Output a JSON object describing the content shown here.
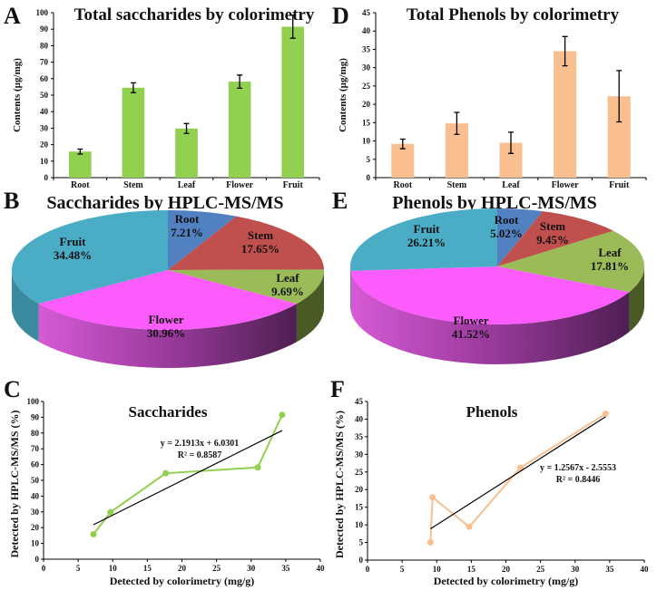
{
  "chart_data": [
    {
      "panel": "A",
      "type": "bar",
      "title": "Total saccharides by colorimetry",
      "xlabel": "",
      "ylabel": "Contents (µg/mg)",
      "categories": [
        "Root",
        "Stem",
        "Leaf",
        "Flower",
        "Fruit"
      ],
      "values": [
        15.8,
        54.5,
        29.8,
        58.2,
        91.5
      ],
      "errors": [
        1.5,
        3.0,
        3.0,
        4.0,
        7.0
      ],
      "ylim": [
        0,
        100
      ],
      "yticks": [
        0,
        10,
        20,
        30,
        40,
        50,
        60,
        70,
        80,
        90,
        100
      ],
      "color": "#92D050",
      "grid": false
    },
    {
      "panel": "D",
      "type": "bar",
      "title": "Total Phenols by colorimetry",
      "xlabel": "",
      "ylabel": "Contents (µg/mg)",
      "categories": [
        "Root",
        "Stem",
        "Leaf",
        "Flower",
        "Fruit"
      ],
      "values": [
        9.2,
        14.8,
        9.5,
        34.5,
        22.2
      ],
      "errors": [
        1.3,
        3.0,
        2.9,
        4.0,
        7.0
      ],
      "ylim": [
        0,
        45
      ],
      "yticks": [
        0,
        5,
        10,
        15,
        20,
        25,
        30,
        35,
        40,
        45
      ],
      "color": "#F9BF8F",
      "grid": false
    },
    {
      "panel": "B",
      "type": "pie",
      "title": "Saccharides by HPLC-MS/MS",
      "slices": [
        {
          "label": "Root",
          "value": 7.21,
          "text": "7.21%",
          "color": "#5181C0",
          "side": "#3a5f8f"
        },
        {
          "label": "Stem",
          "value": 17.65,
          "text": "17.65%",
          "color": "#C0504D",
          "side": "#8a3634"
        },
        {
          "label": "Leaf",
          "value": 9.69,
          "text": "9.69%",
          "color": "#9BBB59",
          "side": "#4a5a24"
        },
        {
          "label": "Flower",
          "value": 30.96,
          "text": "30.96%",
          "color": "#FB5CFB",
          "side": "#8e3590"
        },
        {
          "label": "Fruit",
          "value": 34.48,
          "text": "34.48%",
          "color": "#4BACC6",
          "side": "#3a8aa0"
        }
      ]
    },
    {
      "panel": "E",
      "type": "pie",
      "title": "Phenols by HPLC-MS/MS",
      "slices": [
        {
          "label": "Root",
          "value": 5.02,
          "text": "5.02%",
          "color": "#5181C0",
          "side": "#3a5f8f"
        },
        {
          "label": "Stem",
          "value": 9.45,
          "text": "9.45%",
          "color": "#C0504D",
          "side": "#8a3634"
        },
        {
          "label": "Leaf",
          "value": 17.81,
          "text": "17.81%",
          "color": "#9BBB59",
          "side": "#4a5a24"
        },
        {
          "label": "Flower",
          "value": 41.52,
          "text": "41.52%",
          "color": "#FB5CFB",
          "side": "#8e3590"
        },
        {
          "label": "Fruit",
          "value": 26.21,
          "text": "26.21%",
          "color": "#4BACC6",
          "side": "#3a8aa0"
        }
      ]
    },
    {
      "panel": "C",
      "type": "line",
      "title": "Saccharides",
      "xlabel": "Detected by colorimetry (mg/g)",
      "ylabel": "Detected by HPLC-MS/MS (%)",
      "x": [
        7.21,
        9.69,
        17.65,
        30.96,
        34.48
      ],
      "y": [
        15.8,
        29.8,
        54.5,
        58.2,
        91.5
      ],
      "xlim": [
        0,
        40
      ],
      "ylim": [
        0,
        100
      ],
      "xticks": [
        0,
        5,
        10,
        15,
        20,
        25,
        30,
        35,
        40
      ],
      "yticks": [
        0,
        10,
        20,
        30,
        40,
        50,
        60,
        70,
        80,
        90,
        100
      ],
      "trend": {
        "slope": 2.1913,
        "intercept": 6.0301,
        "x_range": [
          7.21,
          34.48
        ],
        "equation": "y = 2.1913x + 6.0301",
        "r2": "R² = 0.8587"
      },
      "color": "#92D050"
    },
    {
      "panel": "F",
      "type": "line",
      "title": "Phenols",
      "xlabel": "Detected by colorimetry (mg/g)",
      "ylabel": "Detected by HPLC-MS/MS (%)",
      "x": [
        9.1,
        9.4,
        14.7,
        22.1,
        34.4
      ],
      "y": [
        5.02,
        17.81,
        9.45,
        26.21,
        41.52
      ],
      "xlim": [
        0,
        40
      ],
      "ylim": [
        0,
        45
      ],
      "xticks": [
        0,
        5,
        10,
        15,
        20,
        25,
        30,
        35,
        40
      ],
      "yticks": [
        0,
        5,
        10,
        15,
        20,
        25,
        30,
        35,
        40,
        45
      ],
      "trend": {
        "slope": 1.2567,
        "intercept": -2.5553,
        "x_range": [
          9.1,
          34.4
        ],
        "equation": "y = 1.2567x - 2.5553",
        "r2": "R² = 0.8446"
      },
      "color": "#F9BF8F"
    }
  ]
}
